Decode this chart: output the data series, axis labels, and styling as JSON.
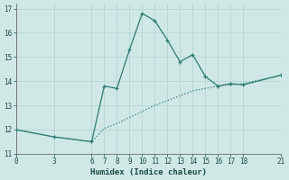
{
  "xlabel": "Humidex (Indice chaleur)",
  "bg_color": "#cfe8e6",
  "line_color": "#2d7a72",
  "grid_color": "#b8d8d5",
  "curve1_x": [
    0,
    3,
    6,
    7,
    8,
    9,
    10,
    11,
    12,
    13,
    14,
    15,
    16,
    17,
    18,
    21
  ],
  "curve1_y": [
    12.0,
    11.7,
    11.5,
    13.8,
    13.7,
    15.3,
    16.8,
    16.5,
    15.7,
    14.8,
    15.1,
    14.2,
    13.8,
    13.9,
    13.85,
    14.25
  ],
  "curve2_x": [
    0,
    3,
    6,
    7,
    8,
    9,
    10,
    11,
    12,
    13,
    14,
    15,
    16,
    17,
    18,
    21
  ],
  "curve2_y": [
    12.0,
    11.7,
    11.5,
    12.05,
    12.25,
    12.5,
    12.75,
    13.0,
    13.2,
    13.4,
    13.6,
    13.7,
    13.8,
    13.85,
    13.9,
    14.25
  ],
  "xticks": [
    0,
    3,
    6,
    7,
    8,
    9,
    10,
    11,
    12,
    13,
    14,
    15,
    16,
    17,
    18,
    21
  ],
  "yticks": [
    11,
    12,
    13,
    14,
    15,
    16,
    17
  ],
  "xlim": [
    0,
    21
  ],
  "ylim": [
    11,
    17.2
  ]
}
